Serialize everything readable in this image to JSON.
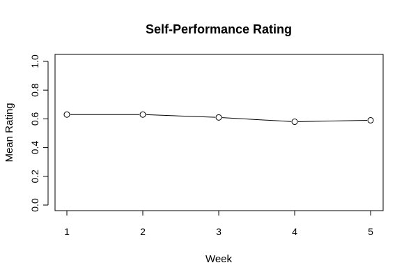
{
  "chart_data": {
    "type": "line",
    "title": "Self-Performance Rating",
    "xlabel": "Week",
    "ylabel": "Mean Rating",
    "x": [
      1,
      2,
      3,
      4,
      5
    ],
    "series": [
      {
        "values": [
          0.63,
          0.63,
          0.61,
          0.58,
          0.59
        ]
      }
    ],
    "xlim": [
      1,
      5
    ],
    "ylim": [
      0,
      1
    ],
    "xticks": [
      "1",
      "2",
      "3",
      "4",
      "5"
    ],
    "yticks": [
      "0.0",
      "0.2",
      "0.4",
      "0.6",
      "0.8",
      "1.0"
    ],
    "grid": false,
    "markers": "open-circle"
  }
}
